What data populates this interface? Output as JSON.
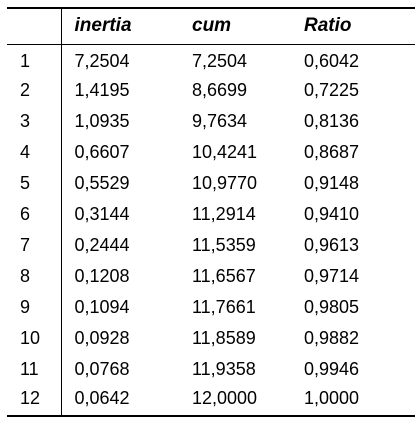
{
  "table": {
    "headers": [
      "",
      "inertia",
      "cum",
      "Ratio"
    ],
    "rows": [
      {
        "index": "1",
        "inertia": "7,2504",
        "cum": "7,2504",
        "ratio": "0,6042"
      },
      {
        "index": "2",
        "inertia": "1,4195",
        "cum": "8,6699",
        "ratio": "0,7225"
      },
      {
        "index": "3",
        "inertia": "1,0935",
        "cum": "9,7634",
        "ratio": "0,8136"
      },
      {
        "index": "4",
        "inertia": "0,6607",
        "cum": "10,4241",
        "ratio": "0,8687"
      },
      {
        "index": "5",
        "inertia": "0,5529",
        "cum": "10,9770",
        "ratio": "0,9148"
      },
      {
        "index": "6",
        "inertia": "0,3144",
        "cum": "11,2914",
        "ratio": "0,9410"
      },
      {
        "index": "7",
        "inertia": "0,2444",
        "cum": "11,5359",
        "ratio": "0,9613"
      },
      {
        "index": "8",
        "inertia": "0,1208",
        "cum": "11,6567",
        "ratio": "0,9714"
      },
      {
        "index": "9",
        "inertia": "0,1094",
        "cum": "11,7661",
        "ratio": "0,9805"
      },
      {
        "index": "10",
        "inertia": "0,0928",
        "cum": "11,8589",
        "ratio": "0,9882"
      },
      {
        "index": "11",
        "inertia": "0,0768",
        "cum": "11,9358",
        "ratio": "0,9946"
      },
      {
        "index": "12",
        "inertia": "0,0642",
        "cum": "12,0000",
        "ratio": "1,0000"
      }
    ]
  }
}
